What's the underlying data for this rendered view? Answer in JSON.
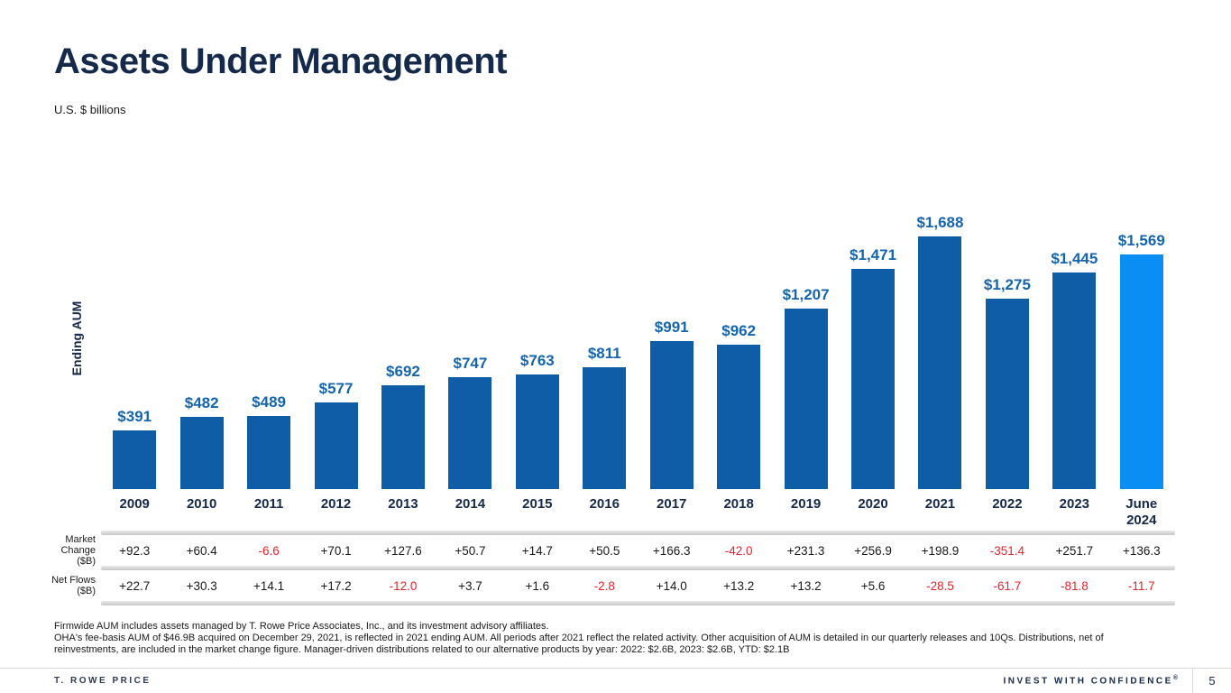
{
  "slide": {
    "title": "Assets Under Management",
    "subtitle": "U.S. $ billions"
  },
  "chart_data": {
    "type": "bar",
    "title": "Assets Under Management",
    "units_note": "U.S. $ billions",
    "ylabel": "Ending AUM",
    "xlabel": "",
    "ylim": [
      0,
      1800
    ],
    "grid": false,
    "legend": "none",
    "categories": [
      "2009",
      "2010",
      "2011",
      "2012",
      "2013",
      "2014",
      "2015",
      "2016",
      "2017",
      "2018",
      "2019",
      "2020",
      "2021",
      "2022",
      "2023",
      "June\n2024"
    ],
    "values": [
      391,
      482,
      489,
      577,
      692,
      747,
      763,
      811,
      991,
      962,
      1207,
      1471,
      1688,
      1275,
      1445,
      1569
    ],
    "bar_labels": [
      "$391",
      "$482",
      "$489",
      "$577",
      "$692",
      "$747",
      "$763",
      "$811",
      "$991",
      "$962",
      "$1,207",
      "$1,471",
      "$1,688",
      "$1,275",
      "$1,445",
      "$1,569"
    ],
    "highlight_index": 15,
    "colors": {
      "bar": "#0E5DA6",
      "highlight_bar": "#0A8EF4",
      "value_label": "#1565AE",
      "axis_label": "#15294B",
      "negative": "#E8232A"
    },
    "table_rows": [
      {
        "label_lines": [
          "Market",
          "Change",
          "($B)"
        ],
        "values": [
          "+92.3",
          "+60.4",
          "-6.6",
          "+70.1",
          "+127.6",
          "+50.7",
          "+14.7",
          "+50.5",
          "+166.3",
          "-42.0",
          "+231.3",
          "+256.9",
          "+198.9",
          "-351.4",
          "+251.7",
          "+136.3"
        ]
      },
      {
        "label_lines": [
          "Net Flows",
          "($B)"
        ],
        "values": [
          "+22.7",
          "+30.3",
          "+14.1",
          "+17.2",
          "-12.0",
          "+3.7",
          "+1.6",
          "-2.8",
          "+14.0",
          "+13.2",
          "+13.2",
          "+5.6",
          "-28.5",
          "-61.7",
          "-81.8",
          "-11.7"
        ]
      }
    ]
  },
  "footnotes": [
    "Firmwide AUM includes assets managed by T. Rowe Price Associates, Inc., and its investment advisory affiliates.",
    "OHA's fee-basis AUM of $46.9B acquired on December 29, 2021, is reflected in 2021 ending AUM. All periods after 2021 reflect the related activity. Other acquisition of AUM is detailed in our quarterly releases and 10Qs. Distributions, net of",
    "reinvestments, are included in the market change figure. Manager-driven distributions related to our alternative products by year: 2022: $2.6B, 2023: $2.6B, YTD: $2.1B"
  ],
  "footer": {
    "brand": "T. ROWE PRICE",
    "tagline": "INVEST WITH CONFIDENCE",
    "reg_mark": "®",
    "page": "5"
  }
}
